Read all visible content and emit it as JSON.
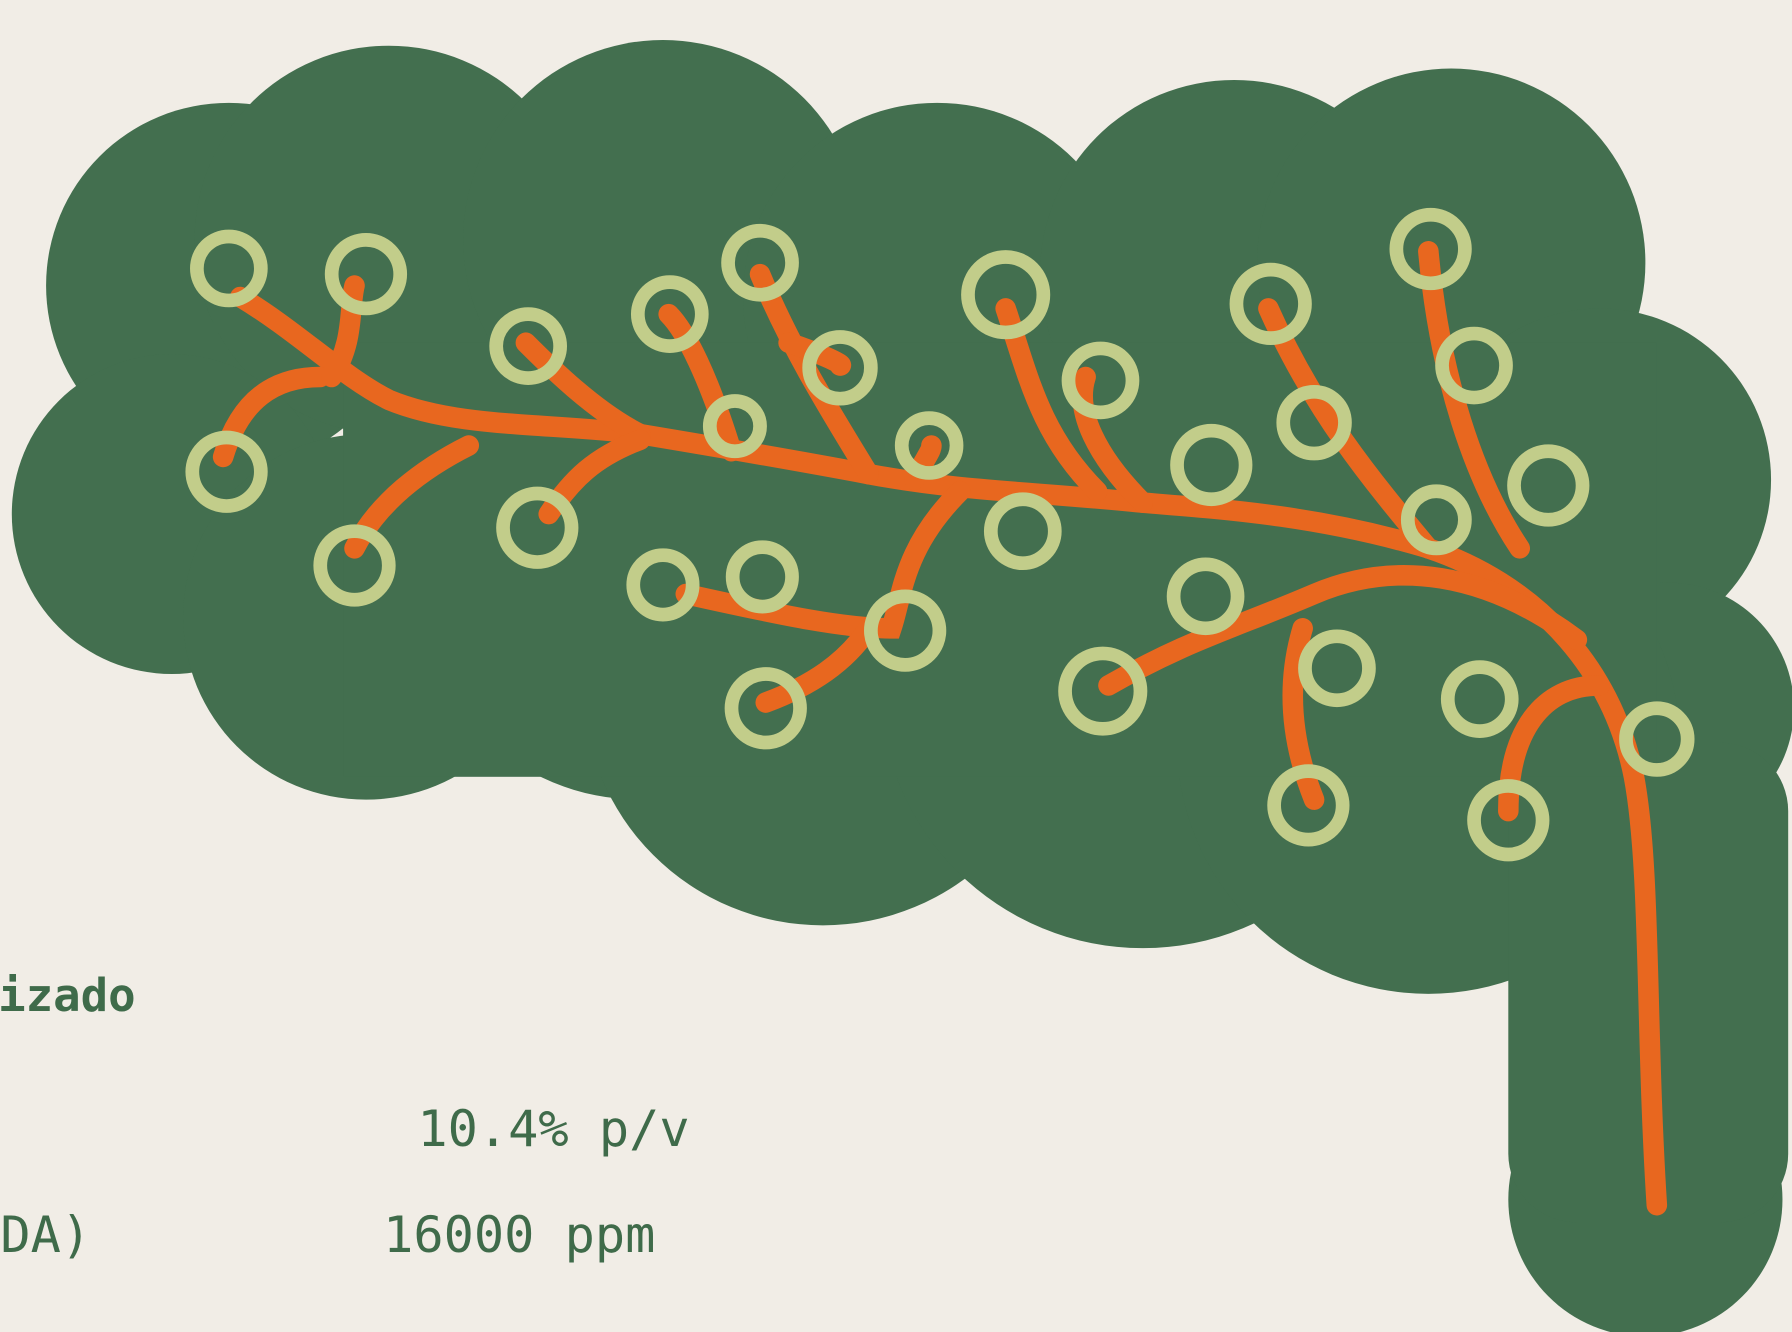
{
  "rows": [
    {
      "label": null,
      "value": null,
      "heading": "izado"
    },
    {
      "value": "10.4% p/v"
    },
    {
      "label": "DA)",
      "value": "16000 ppm"
    }
  ]
}
